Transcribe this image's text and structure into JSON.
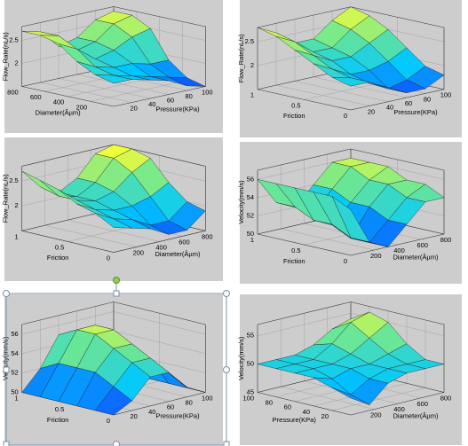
{
  "chart_data": [
    {
      "type": "surface",
      "x_label": "Pressure(KPa)",
      "y_label": "Diameter(Âµm)",
      "z_label": "Flow_Rate(nL/s)",
      "x": [
        0,
        20,
        40,
        60,
        80,
        100
      ],
      "y": [
        0,
        160,
        320,
        480,
        640,
        800
      ],
      "z": [
        [
          2.0,
          2.0,
          1.9,
          1.8,
          1.6,
          1.5
        ],
        [
          2.1,
          2.0,
          1.9,
          1.8,
          1.7,
          1.6
        ],
        [
          2.3,
          2.1,
          2.0,
          2.0,
          1.9,
          1.9
        ],
        [
          2.6,
          2.4,
          2.1,
          2.2,
          2.4,
          2.5
        ],
        [
          2.7,
          2.6,
          2.2,
          2.3,
          2.6,
          2.7
        ],
        [
          2.7,
          2.6,
          2.2,
          2.3,
          2.6,
          2.7
        ]
      ],
      "xlim": [
        0,
        100
      ],
      "ylim": [
        0,
        800
      ],
      "zlim": [
        1.5,
        2.8
      ],
      "xticks": [
        20,
        40,
        60,
        80,
        100
      ],
      "yticks": [
        200,
        400,
        600,
        800
      ],
      "zticks": [
        2,
        2.5
      ],
      "colormap": [
        "#1040ff",
        "#00c8ff",
        "#70e890",
        "#ffff30"
      ]
    },
    {
      "type": "surface",
      "x_label": "Pressure(KPa)",
      "y_label": "Friction",
      "z_label": "Flow_Rate(nL/s)",
      "x": [
        0,
        20,
        40,
        60,
        80,
        100
      ],
      "y": [
        0,
        0.2,
        0.4,
        0.6,
        0.8,
        1
      ],
      "z": [
        [
          2.0,
          2.0,
          1.8,
          1.6,
          1.6,
          1.8
        ],
        [
          2.1,
          2.0,
          1.8,
          1.6,
          1.7,
          1.9
        ],
        [
          2.3,
          2.1,
          1.9,
          1.9,
          2.0,
          2.2
        ],
        [
          2.5,
          2.3,
          2.1,
          2.1,
          2.3,
          2.5
        ],
        [
          2.7,
          2.5,
          2.2,
          2.2,
          2.5,
          2.7
        ],
        [
          2.8,
          2.6,
          2.3,
          2.3,
          2.6,
          2.8
        ]
      ],
      "xlim": [
        0,
        100
      ],
      "ylim": [
        0,
        1
      ],
      "zlim": [
        1.5,
        2.8
      ],
      "xticks": [
        20,
        40,
        60,
        80,
        100
      ],
      "yticks": [
        0,
        0.5,
        1
      ],
      "zticks": [
        2,
        2.5
      ],
      "colormap": [
        "#1040ff",
        "#00c8ff",
        "#70e890",
        "#ffff30"
      ]
    },
    {
      "type": "surface",
      "x_label": "Diameter(Âµm)",
      "y_label": "Friction",
      "z_label": "Flow_Rate(nL/s)",
      "x": [
        0,
        160,
        320,
        480,
        640,
        800
      ],
      "y": [
        0,
        0.2,
        0.4,
        0.6,
        0.8,
        1
      ],
      "z": [
        [
          2.0,
          1.9,
          1.8,
          1.6,
          1.6,
          1.9
        ],
        [
          2.2,
          2.0,
          1.9,
          1.7,
          1.7,
          2.0
        ],
        [
          2.3,
          2.1,
          2.0,
          2.0,
          2.1,
          2.3
        ],
        [
          2.5,
          2.2,
          2.1,
          2.2,
          2.5,
          2.7
        ],
        [
          2.6,
          2.2,
          2.1,
          2.3,
          2.7,
          2.8
        ],
        [
          2.7,
          2.3,
          2.1,
          2.3,
          2.7,
          2.8
        ]
      ],
      "xlim": [
        0,
        800
      ],
      "ylim": [
        0,
        1
      ],
      "zlim": [
        1.5,
        2.8
      ],
      "xticks": [
        200,
        400,
        600,
        800
      ],
      "yticks": [
        0,
        0.5,
        1
      ],
      "zticks": [
        2,
        2.5
      ],
      "colormap": [
        "#1040ff",
        "#00c8ff",
        "#70e890",
        "#ffff30"
      ]
    },
    {
      "type": "surface",
      "x_label": "Diameter(Âµm)",
      "y_label": "Friction",
      "z_label": "Velocity(mm/s)",
      "x": [
        0,
        160,
        320,
        480,
        640,
        800
      ],
      "y": [
        0,
        0.2,
        0.4,
        0.6,
        0.8,
        1
      ],
      "z": [
        [
          55,
          51,
          50,
          52,
          54,
          54
        ],
        [
          56,
          51,
          50,
          52,
          54,
          55
        ],
        [
          56,
          52,
          50,
          53,
          55,
          55
        ],
        [
          56,
          52,
          51,
          53,
          55,
          56
        ],
        [
          56,
          53,
          52,
          54,
          56,
          56
        ],
        [
          56,
          53,
          52,
          54,
          56,
          56
        ]
      ],
      "xlim": [
        0,
        800
      ],
      "ylim": [
        0,
        1
      ],
      "zlim": [
        50,
        57
      ],
      "xticks": [
        200,
        400,
        600,
        800
      ],
      "yticks": [
        0,
        0.5,
        1
      ],
      "zticks": [
        50,
        52,
        54,
        56
      ],
      "colormap": [
        "#1040ff",
        "#00c8ff",
        "#70e890",
        "#ffff30"
      ]
    },
    {
      "type": "surface",
      "x_label": "Pressure(KPa)",
      "y_label": "Friction",
      "z_label": "Velocity(mm/s)",
      "x": [
        0,
        20,
        40,
        60,
        80,
        100
      ],
      "y": [
        0,
        0.2,
        0.4,
        0.6,
        0.8,
        1
      ],
      "z": [
        [
          50,
          51,
          53,
          53,
          51,
          50
        ],
        [
          50,
          52,
          54,
          54,
          52,
          50
        ],
        [
          50,
          53,
          55,
          55,
          53,
          50
        ],
        [
          50,
          53,
          56,
          56,
          53,
          50
        ],
        [
          50,
          53,
          56,
          56,
          53,
          50
        ],
        [
          50,
          52,
          55,
          55,
          52,
          50
        ]
      ],
      "xlim": [
        0,
        100
      ],
      "ylim": [
        0,
        1
      ],
      "zlim": [
        50,
        57
      ],
      "xticks": [
        20,
        40,
        60,
        80,
        100
      ],
      "yticks": [
        0,
        0.5,
        1
      ],
      "zticks": [
        50,
        52,
        54,
        56
      ],
      "colormap": [
        "#1040ff",
        "#00c8ff",
        "#70e890",
        "#ffff30"
      ]
    },
    {
      "type": "surface",
      "x_label": "Diameter(Âµm)",
      "y_label": "Pressure(KPa)",
      "z_label": "Velocity(mm/s)",
      "x": [
        0,
        160,
        320,
        480,
        640,
        800
      ],
      "y": [
        0,
        20,
        40,
        60,
        80,
        100
      ],
      "z": [
        [
          48,
          46,
          49,
          50,
          50,
          50
        ],
        [
          49,
          47,
          49,
          50,
          50,
          50
        ],
        [
          50,
          49,
          50,
          50,
          51,
          52
        ],
        [
          50,
          50,
          50,
          51,
          53,
          55
        ],
        [
          50,
          50,
          50,
          52,
          55,
          56
        ],
        [
          50,
          50,
          50,
          51,
          53,
          54
        ]
      ],
      "xlim": [
        0,
        800
      ],
      "ylim": [
        0,
        100
      ],
      "zlim": [
        45,
        57
      ],
      "xticks": [
        200,
        400,
        600,
        800
      ],
      "yticks": [
        20,
        40,
        60,
        80,
        100
      ],
      "zticks": [
        45,
        50,
        55
      ],
      "colormap": [
        "#1040ff",
        "#00c8ff",
        "#70e890",
        "#ffff30"
      ]
    }
  ]
}
